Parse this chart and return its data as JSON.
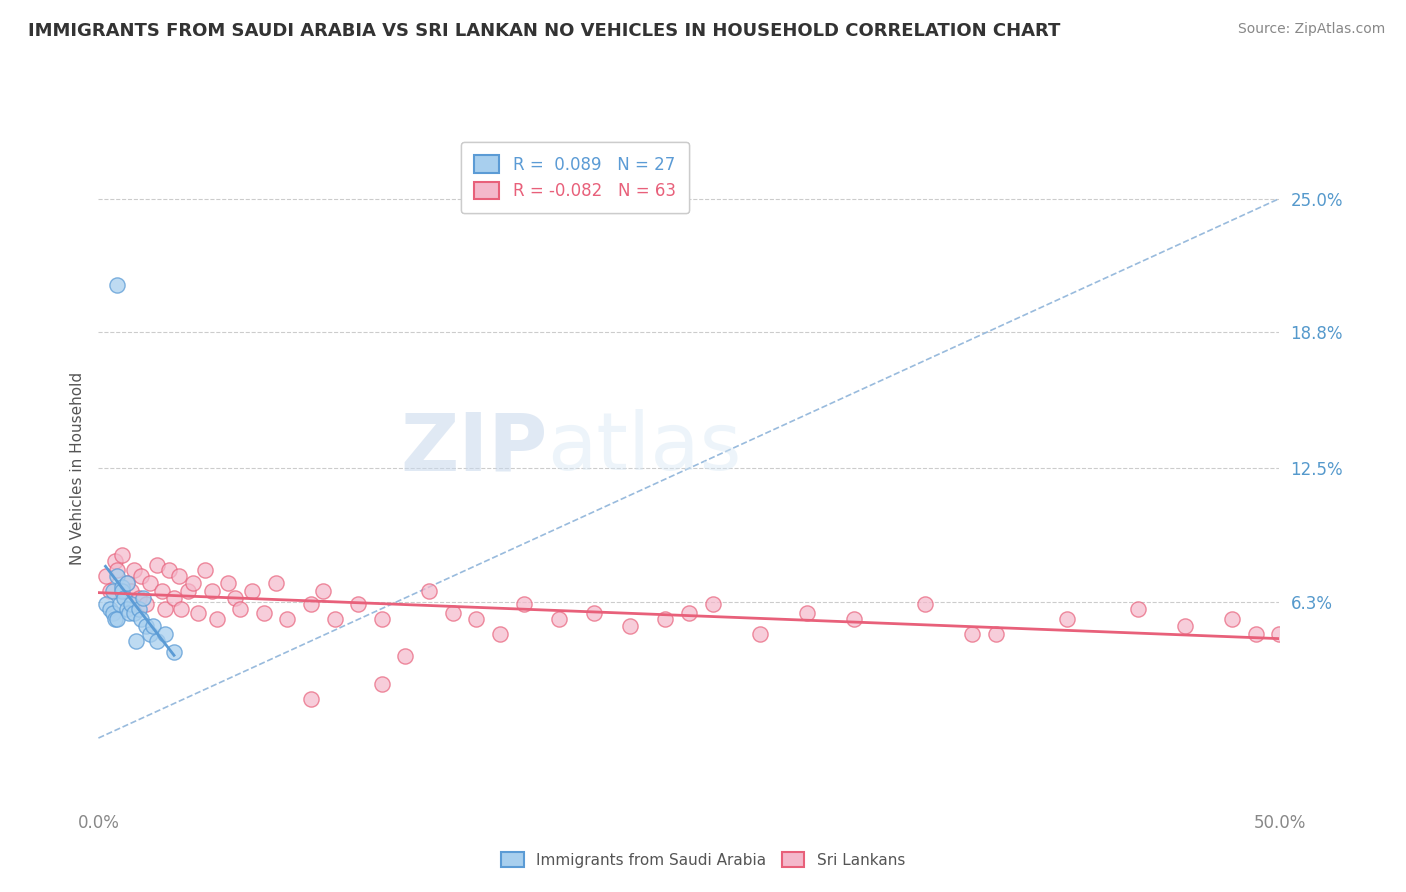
{
  "title": "IMMIGRANTS FROM SAUDI ARABIA VS SRI LANKAN NO VEHICLES IN HOUSEHOLD CORRELATION CHART",
  "source_text": "Source: ZipAtlas.com",
  "ylabel": "No Vehicles in Household",
  "xlim": [
    0.0,
    0.5
  ],
  "ylim": [
    -0.03,
    0.28
  ],
  "ytick_labels": [
    "6.3%",
    "12.5%",
    "18.8%",
    "25.0%"
  ],
  "ytick_values": [
    0.063,
    0.125,
    0.188,
    0.25
  ],
  "xtick_values": [
    0.0,
    0.05,
    0.1,
    0.15,
    0.2,
    0.25,
    0.3,
    0.35,
    0.4,
    0.45,
    0.5
  ],
  "saudi_R": 0.089,
  "saudi_N": 27,
  "srilankan_R": -0.082,
  "srilankan_N": 63,
  "saudi_color": "#A8CFEE",
  "srilankan_color": "#F4B8CB",
  "saudi_line_color": "#5B9BD5",
  "srilankan_line_color": "#E8607A",
  "watermark1": "ZIP",
  "watermark2": "atlas",
  "legend_saudi_label": "Immigrants from Saudi Arabia",
  "legend_srilankan_label": "Sri Lankans",
  "saudi_x": [
    0.003,
    0.005,
    0.006,
    0.006,
    0.007,
    0.008,
    0.008,
    0.009,
    0.01,
    0.01,
    0.011,
    0.012,
    0.012,
    0.013,
    0.014,
    0.015,
    0.016,
    0.017,
    0.018,
    0.019,
    0.02,
    0.022,
    0.023,
    0.025,
    0.028,
    0.032,
    0.008
  ],
  "saudi_y": [
    0.062,
    0.06,
    0.058,
    0.068,
    0.055,
    0.055,
    0.075,
    0.062,
    0.07,
    0.068,
    0.065,
    0.06,
    0.072,
    0.058,
    0.062,
    0.058,
    0.045,
    0.06,
    0.055,
    0.065,
    0.052,
    0.048,
    0.052,
    0.045,
    0.048,
    0.04,
    0.21
  ],
  "srilankan_x": [
    0.003,
    0.005,
    0.007,
    0.008,
    0.01,
    0.012,
    0.014,
    0.015,
    0.017,
    0.018,
    0.02,
    0.022,
    0.025,
    0.027,
    0.028,
    0.03,
    0.032,
    0.034,
    0.035,
    0.038,
    0.04,
    0.042,
    0.045,
    0.048,
    0.05,
    0.055,
    0.058,
    0.06,
    0.065,
    0.07,
    0.075,
    0.08,
    0.09,
    0.095,
    0.1,
    0.11,
    0.12,
    0.13,
    0.14,
    0.15,
    0.16,
    0.17,
    0.18,
    0.195,
    0.21,
    0.225,
    0.24,
    0.26,
    0.28,
    0.3,
    0.32,
    0.35,
    0.38,
    0.41,
    0.44,
    0.46,
    0.48,
    0.49,
    0.5,
    0.12,
    0.09,
    0.25,
    0.37
  ],
  "srilankan_y": [
    0.075,
    0.068,
    0.082,
    0.078,
    0.085,
    0.072,
    0.068,
    0.078,
    0.065,
    0.075,
    0.062,
    0.072,
    0.08,
    0.068,
    0.06,
    0.078,
    0.065,
    0.075,
    0.06,
    0.068,
    0.072,
    0.058,
    0.078,
    0.068,
    0.055,
    0.072,
    0.065,
    0.06,
    0.068,
    0.058,
    0.072,
    0.055,
    0.062,
    0.068,
    0.055,
    0.062,
    0.055,
    0.038,
    0.068,
    0.058,
    0.055,
    0.048,
    0.062,
    0.055,
    0.058,
    0.052,
    0.055,
    0.062,
    0.048,
    0.058,
    0.055,
    0.062,
    0.048,
    0.055,
    0.06,
    0.052,
    0.055,
    0.048,
    0.048,
    0.025,
    0.018,
    0.058,
    0.048
  ]
}
